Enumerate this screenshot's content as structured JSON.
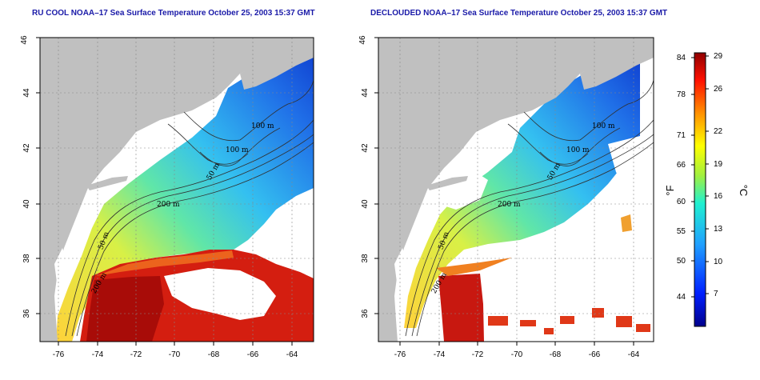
{
  "panels": [
    {
      "title": "RU COOL NOAA–17 Sea Surface Temperature October 25, 2003 15:37 GMT",
      "contour_labels": [
        "100 m",
        "100 m",
        "50 m",
        "200 m",
        "50 m",
        "200 m"
      ],
      "cloud_masked": false
    },
    {
      "title": "DECLOUDED NOAA–17 Sea Surface Temperature October 25, 2003 15:37 GMT",
      "contour_labels": [
        "100 m",
        "100 m",
        "50 m",
        "200 m",
        "50 m",
        "200 m"
      ],
      "cloud_masked": true
    }
  ],
  "axes": {
    "lon_ticks": [
      "-76",
      "-74",
      "-72",
      "-70",
      "-68",
      "-66",
      "-64"
    ],
    "lat_ticks": [
      "36",
      "38",
      "40",
      "42",
      "44",
      "46"
    ]
  },
  "colorbar": {
    "fahrenheit_ticks": [
      "84",
      "78",
      "71",
      "66",
      "60",
      "55",
      "50",
      "44"
    ],
    "celsius_ticks": [
      "29",
      "26",
      "22",
      "19",
      "16",
      "13",
      "10",
      "7"
    ],
    "fahrenheit_unit": "°F",
    "celsius_unit": "°C"
  },
  "colors": {
    "land": "#c0c0c0",
    "title": "#1a1aa8",
    "cloud": "#ffffff"
  }
}
